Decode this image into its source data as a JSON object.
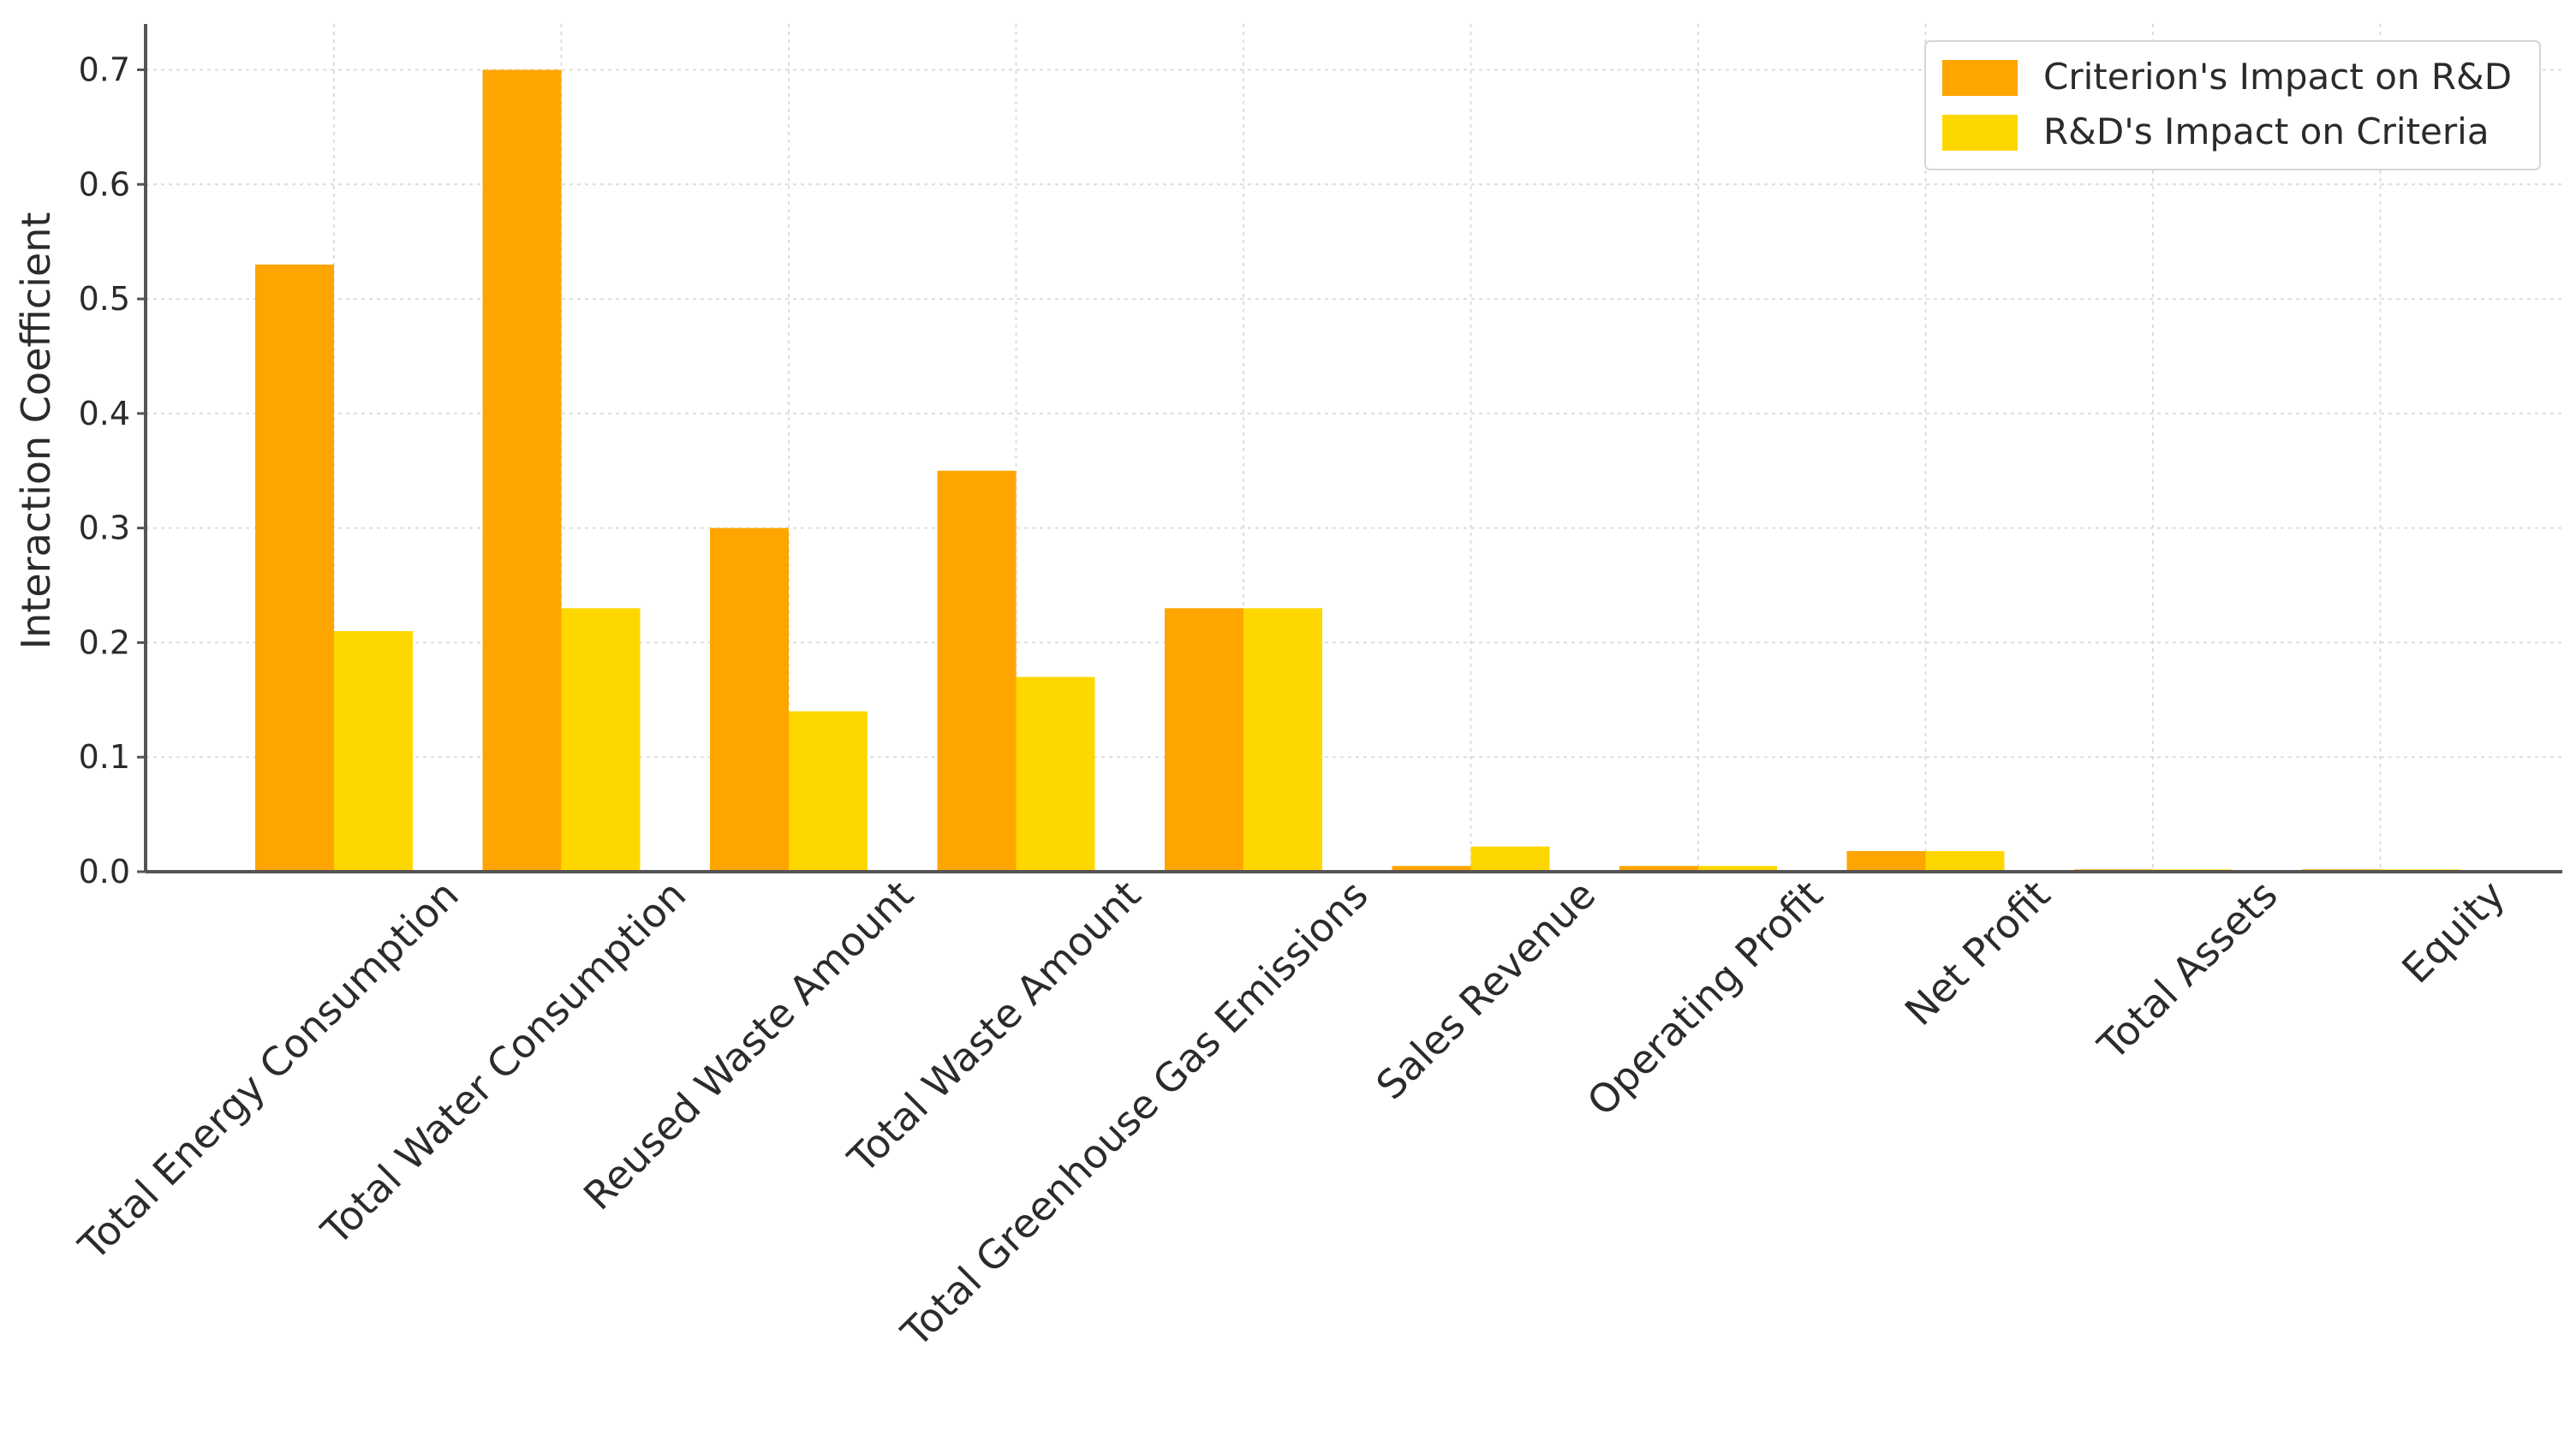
{
  "chart_data": {
    "type": "bar",
    "title": "",
    "xlabel": "",
    "ylabel": "Interaction Coefficient",
    "ylim": [
      0,
      0.74
    ],
    "yticks": [
      "0.0",
      "0.1",
      "0.2",
      "0.3",
      "0.4",
      "0.5",
      "0.6",
      "0.7"
    ],
    "grid": true,
    "legend_position": "top-right",
    "categories": [
      "Total Energy Consumption",
      "Total Water Consumption",
      "Reused Waste Amount",
      "Total Waste Amount",
      "Total Greenhouse Gas Emissions",
      "Sales Revenue",
      "Operating Profit",
      "Net Profit",
      "Total Assets",
      "Equity"
    ],
    "series": [
      {
        "name": "Criterion's Impact on R&D",
        "color": "#FFA500",
        "values": [
          0.53,
          0.7,
          0.3,
          0.35,
          0.23,
          0.005,
          0.005,
          0.018,
          0.002,
          0.002
        ]
      },
      {
        "name": "R&D's Impact on Criteria",
        "color": "#FFD700",
        "values": [
          0.21,
          0.23,
          0.14,
          0.17,
          0.23,
          0.022,
          0.005,
          0.018,
          0.002,
          0.002
        ]
      }
    ]
  }
}
